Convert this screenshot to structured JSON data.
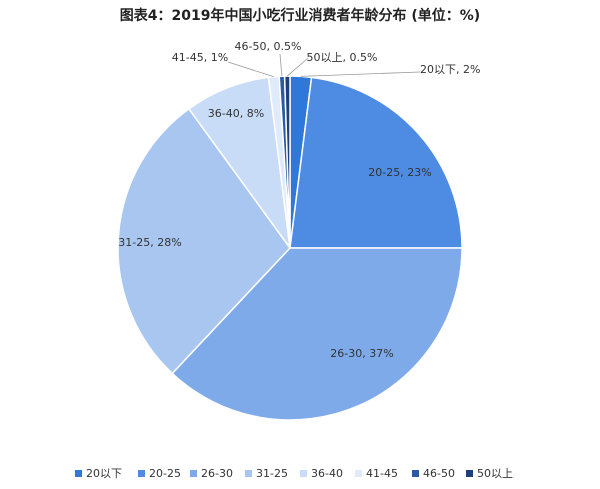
{
  "chart_data": {
    "type": "pie",
    "title": "图表4：2019年中国小吃行业消费者年龄分布 (单位：%)",
    "categories": [
      "20以下",
      "20-25",
      "26-30",
      "31-25",
      "36-40",
      "41-45",
      "46-50",
      "50以上"
    ],
    "values": [
      2,
      23,
      37,
      28,
      8,
      1,
      0.5,
      0.5
    ],
    "value_labels": [
      "20以下, 2%",
      "20-25, 23%",
      "26-30, 37%",
      "31-25, 28%",
      "36-40, 8%",
      "41-45, 1%",
      "46-50, 0.5%",
      "50以上, 0.5%"
    ],
    "colors": [
      "#2f77d8",
      "#4e8be2",
      "#7eaaea",
      "#a9c6f1",
      "#c9dcf7",
      "#dfeafa",
      "#2b5aa3",
      "#1e3f7c"
    ],
    "legend": "bottom"
  }
}
